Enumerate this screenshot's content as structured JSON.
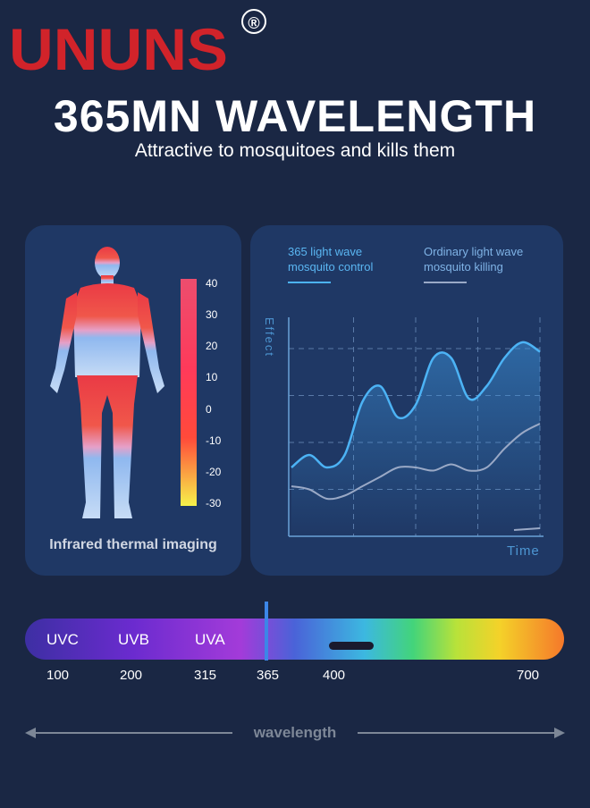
{
  "brand": {
    "logo_text": "UNUNS",
    "registered_mark": "®",
    "logo_color": "#d1232a"
  },
  "header": {
    "title": "365MN WAVELENGTH",
    "subtitle": "Attractive to mosquitoes and kills them"
  },
  "thermal_panel": {
    "caption": "Infrared thermal imaging",
    "scale_ticks": [
      "40",
      "30",
      "20",
      "10",
      "0",
      "-10",
      "-20",
      "-30"
    ]
  },
  "chart_panel": {
    "legend": [
      {
        "line1": "365 light wave",
        "line2": "mosquito control",
        "color": "#4cb3f5"
      },
      {
        "line1": "Ordinary light wave",
        "line2": "mosquito killing",
        "color": "#9aa9c6"
      }
    ],
    "y_axis_label": "Effect",
    "x_axis_label": "Time"
  },
  "chart_data": {
    "type": "line",
    "title": "",
    "xlabel": "Time",
    "ylabel": "Effect",
    "x": [
      0,
      1,
      2,
      3,
      4,
      5,
      6,
      7,
      8,
      9,
      10,
      11,
      12,
      13,
      14
    ],
    "series": [
      {
        "name": "365 light wave mosquito control",
        "values": [
          2.2,
          2.6,
          2.2,
          2.6,
          4.3,
          4.8,
          3.8,
          4.2,
          5.7,
          5.7,
          4.4,
          4.8,
          5.7,
          6.2,
          5.9
        ]
      },
      {
        "name": "Ordinary light wave mosquito killing",
        "values": [
          1.6,
          1.5,
          1.2,
          1.3,
          1.6,
          1.9,
          2.2,
          2.2,
          2.1,
          2.3,
          2.1,
          2.2,
          2.8,
          3.3,
          3.6
        ]
      }
    ],
    "ylim": [
      0,
      7
    ],
    "grid": true
  },
  "spectrum": {
    "bands": [
      "UVC",
      "UVB",
      "UVA"
    ],
    "wavelengths": [
      "100",
      "200",
      "315",
      "365",
      "400",
      "700"
    ],
    "axis_label": "wavelength"
  }
}
